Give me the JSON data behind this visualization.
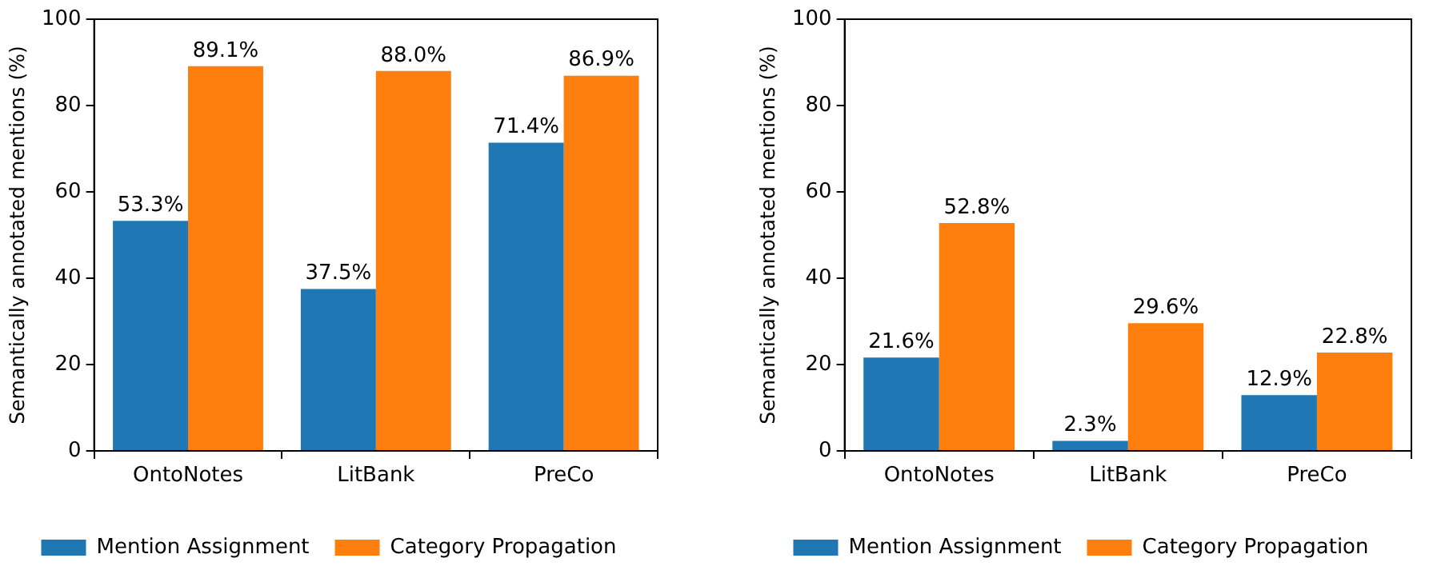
{
  "chart_data": [
    {
      "type": "bar",
      "ylabel": "Semantically annotated mentions (%)",
      "categories": [
        "OntoNotes",
        "LitBank",
        "PreCo"
      ],
      "ylim": [
        0,
        100
      ],
      "yticks": [
        0,
        20,
        40,
        60,
        80,
        100
      ],
      "grid": false,
      "legend": "bottom",
      "series": [
        {
          "name": "Mention Assignment",
          "color": "#1f77b4",
          "values": [
            53.3,
            37.5,
            71.4
          ],
          "value_labels": [
            "53.3%",
            "37.5%",
            "71.4%"
          ]
        },
        {
          "name": "Category Propagation",
          "color": "#ff7f0e",
          "values": [
            89.1,
            88.0,
            86.9
          ],
          "value_labels": [
            "89.1%",
            "88.0%",
            "86.9%"
          ]
        }
      ]
    },
    {
      "type": "bar",
      "ylabel": "Semantically annotated mentions (%)",
      "categories": [
        "OntoNotes",
        "LitBank",
        "PreCo"
      ],
      "ylim": [
        0,
        100
      ],
      "yticks": [
        0,
        20,
        40,
        60,
        80,
        100
      ],
      "grid": false,
      "legend": "bottom",
      "series": [
        {
          "name": "Mention Assignment",
          "color": "#1f77b4",
          "values": [
            21.6,
            2.3,
            12.9
          ],
          "value_labels": [
            "21.6%",
            "2.3%",
            "12.9%"
          ]
        },
        {
          "name": "Category Propagation",
          "color": "#ff7f0e",
          "values": [
            52.8,
            29.6,
            22.8
          ],
          "value_labels": [
            "52.8%",
            "29.6%",
            "22.8%"
          ]
        }
      ]
    }
  ]
}
